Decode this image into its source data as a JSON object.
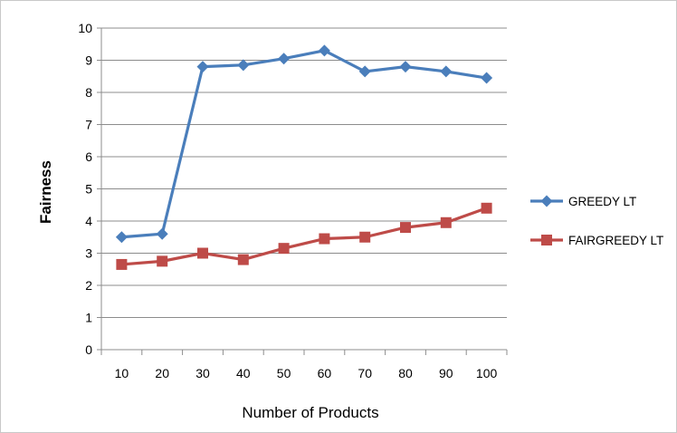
{
  "chart_data": {
    "type": "line",
    "title": "",
    "xlabel": "Number of Products",
    "ylabel": "Fairness",
    "categories": [
      "10",
      "20",
      "30",
      "40",
      "50",
      "60",
      "70",
      "80",
      "90",
      "100"
    ],
    "ylim": [
      0,
      10
    ],
    "yticks": [
      "0",
      "1",
      "2",
      "3",
      "4",
      "5",
      "6",
      "7",
      "8",
      "9",
      "10"
    ],
    "grid": true,
    "legend_position": "right",
    "series": [
      {
        "name": "GREEDY LT",
        "color": "#4A7EBB",
        "marker": "diamond",
        "values": [
          3.5,
          3.6,
          8.8,
          8.85,
          9.05,
          9.3,
          8.65,
          8.8,
          8.65,
          8.45
        ]
      },
      {
        "name": "FAIRGREEDY LT",
        "color": "#BE4B48",
        "marker": "square",
        "values": [
          2.65,
          2.75,
          3.0,
          2.8,
          3.15,
          3.45,
          3.5,
          3.8,
          3.95,
          4.4
        ]
      }
    ]
  }
}
